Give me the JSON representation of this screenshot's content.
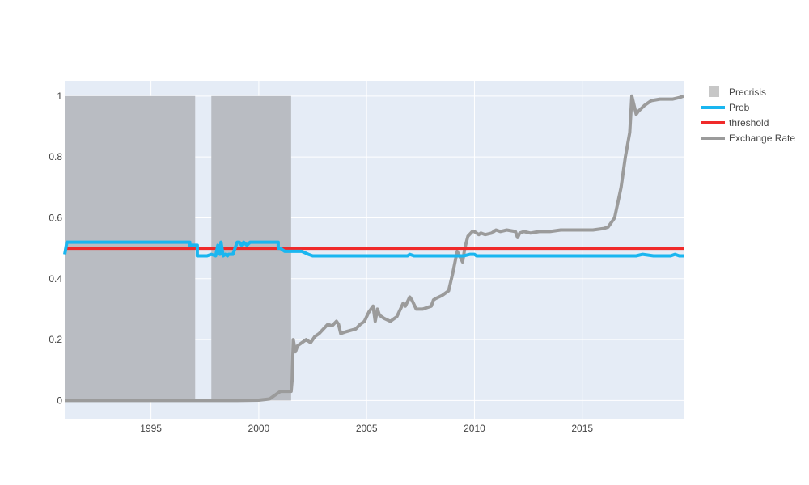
{
  "chart_data": {
    "type": "line",
    "title": "",
    "xlabel": "",
    "ylabel": "",
    "xlim": [
      1991.0,
      2019.7
    ],
    "ylim": [
      -0.06,
      1.05
    ],
    "grid": true,
    "legend_placement": "top-right",
    "x_ticks": [
      {
        "value": 1995,
        "label": "1995"
      },
      {
        "value": 2000,
        "label": "2000"
      },
      {
        "value": 2005,
        "label": "2005"
      },
      {
        "value": 2010,
        "label": "2010"
      },
      {
        "value": 2015,
        "label": "2015"
      }
    ],
    "y_ticks": [
      {
        "value": 0,
        "label": "0"
      },
      {
        "value": 0.2,
        "label": "0.2"
      },
      {
        "value": 0.4,
        "label": "0.4"
      },
      {
        "value": 0.6,
        "label": "0.6"
      },
      {
        "value": 0.8,
        "label": "0.8"
      },
      {
        "value": 1,
        "label": "1"
      }
    ],
    "bands": [
      {
        "name": "Precrisis",
        "x0": 1991.0,
        "x1": 1997.05,
        "y0": 0,
        "y1": 1,
        "color": "#b9bcc2"
      },
      {
        "name": "Precrisis",
        "x0": 1997.8,
        "x1": 2001.5,
        "y0": 0,
        "y1": 1,
        "color": "#b9bcc2"
      }
    ],
    "series": [
      {
        "name": "Prob",
        "color": "#1ab6f0",
        "x": [
          1991.0,
          1991.1,
          1991.2,
          1996.8,
          1996.8,
          1997.15,
          1997.15,
          1997.6,
          1997.8,
          1998.0,
          1998.1,
          1998.2,
          1998.25,
          1998.35,
          1998.45,
          1998.55,
          1998.6,
          1998.8,
          1999.0,
          1999.1,
          1999.2,
          1999.3,
          1999.45,
          1999.6,
          1999.75,
          1999.9,
          2000.0,
          2000.9,
          2000.9,
          2001.0,
          2001.2,
          2001.6,
          2002.0,
          2002.3,
          2002.5,
          2006.9,
          2007.0,
          2007.2,
          2009.5,
          2009.8,
          2010.0,
          2010.1,
          2017.5,
          2017.8,
          2018.3,
          2019.1,
          2019.3,
          2019.5,
          2019.7
        ],
        "y": [
          0.48,
          0.52,
          0.52,
          0.52,
          0.51,
          0.51,
          0.475,
          0.475,
          0.48,
          0.475,
          0.51,
          0.48,
          0.52,
          0.475,
          0.48,
          0.475,
          0.48,
          0.48,
          0.52,
          0.52,
          0.51,
          0.52,
          0.51,
          0.52,
          0.52,
          0.52,
          0.52,
          0.52,
          0.5,
          0.5,
          0.49,
          0.49,
          0.49,
          0.48,
          0.475,
          0.475,
          0.48,
          0.475,
          0.475,
          0.48,
          0.48,
          0.475,
          0.475,
          0.48,
          0.475,
          0.475,
          0.48,
          0.475,
          0.475
        ]
      },
      {
        "name": "threshold",
        "color": "#f02a2a",
        "x": [
          1991.0,
          2019.7
        ],
        "y": [
          0.5,
          0.5
        ]
      },
      {
        "name": "Exchange Rate",
        "color": "#9b9b9b",
        "x": [
          1991.0,
          1995.0,
          1998.0,
          1999.0,
          2000.0,
          2000.5,
          2000.8,
          2001.0,
          2001.5,
          2001.55,
          2001.6,
          2001.7,
          2001.8,
          2002.0,
          2002.2,
          2002.4,
          2002.6,
          2002.8,
          2003.0,
          2003.2,
          2003.4,
          2003.6,
          2003.7,
          2003.8,
          2004.0,
          2004.5,
          2004.7,
          2004.9,
          2005.1,
          2005.3,
          2005.4,
          2005.5,
          2005.6,
          2005.8,
          2006.1,
          2006.4,
          2006.7,
          2006.8,
          2007.0,
          2007.1,
          2007.3,
          2007.4,
          2007.6,
          2008.0,
          2008.1,
          2008.2,
          2008.5,
          2008.8,
          2009.0,
          2009.2,
          2009.35,
          2009.45,
          2009.55,
          2009.7,
          2009.9,
          2010.0,
          2010.2,
          2010.3,
          2010.5,
          2010.8,
          2011.0,
          2011.2,
          2011.5,
          2011.9,
          2012.0,
          2012.1,
          2012.3,
          2012.6,
          2013.0,
          2013.5,
          2014.0,
          2014.5,
          2015.0,
          2015.5,
          2016.0,
          2016.2,
          2016.5,
          2016.8,
          2017.0,
          2017.2,
          2017.3,
          2017.5,
          2017.6,
          2017.9,
          2018.2,
          2018.6,
          2019.2,
          2019.5,
          2019.7
        ],
        "y": [
          0.0,
          0.0,
          0.0,
          0.0,
          0.001,
          0.005,
          0.02,
          0.03,
          0.03,
          0.07,
          0.2,
          0.16,
          0.18,
          0.19,
          0.2,
          0.19,
          0.21,
          0.22,
          0.235,
          0.25,
          0.245,
          0.26,
          0.25,
          0.22,
          0.225,
          0.235,
          0.25,
          0.26,
          0.29,
          0.31,
          0.26,
          0.3,
          0.28,
          0.27,
          0.26,
          0.275,
          0.32,
          0.31,
          0.34,
          0.33,
          0.3,
          0.3,
          0.3,
          0.31,
          0.33,
          0.335,
          0.345,
          0.36,
          0.42,
          0.49,
          0.47,
          0.455,
          0.5,
          0.54,
          0.555,
          0.555,
          0.545,
          0.55,
          0.545,
          0.55,
          0.56,
          0.555,
          0.56,
          0.555,
          0.535,
          0.55,
          0.555,
          0.55,
          0.555,
          0.555,
          0.56,
          0.56,
          0.56,
          0.56,
          0.565,
          0.57,
          0.6,
          0.7,
          0.8,
          0.88,
          1.0,
          0.94,
          0.95,
          0.97,
          0.985,
          0.99,
          0.99,
          0.995,
          1.0
        ]
      }
    ],
    "legend": [
      {
        "name": "Precrisis",
        "kind": "box",
        "color": "#c7c7c7"
      },
      {
        "name": "Prob",
        "kind": "line",
        "color": "#1ab6f0"
      },
      {
        "name": "threshold",
        "kind": "line",
        "color": "#f02a2a"
      },
      {
        "name": "Exchange Rate",
        "kind": "line",
        "color": "#9b9b9b"
      }
    ],
    "plot_background": "#e5ecf6",
    "grid_color": "#ffffff"
  }
}
